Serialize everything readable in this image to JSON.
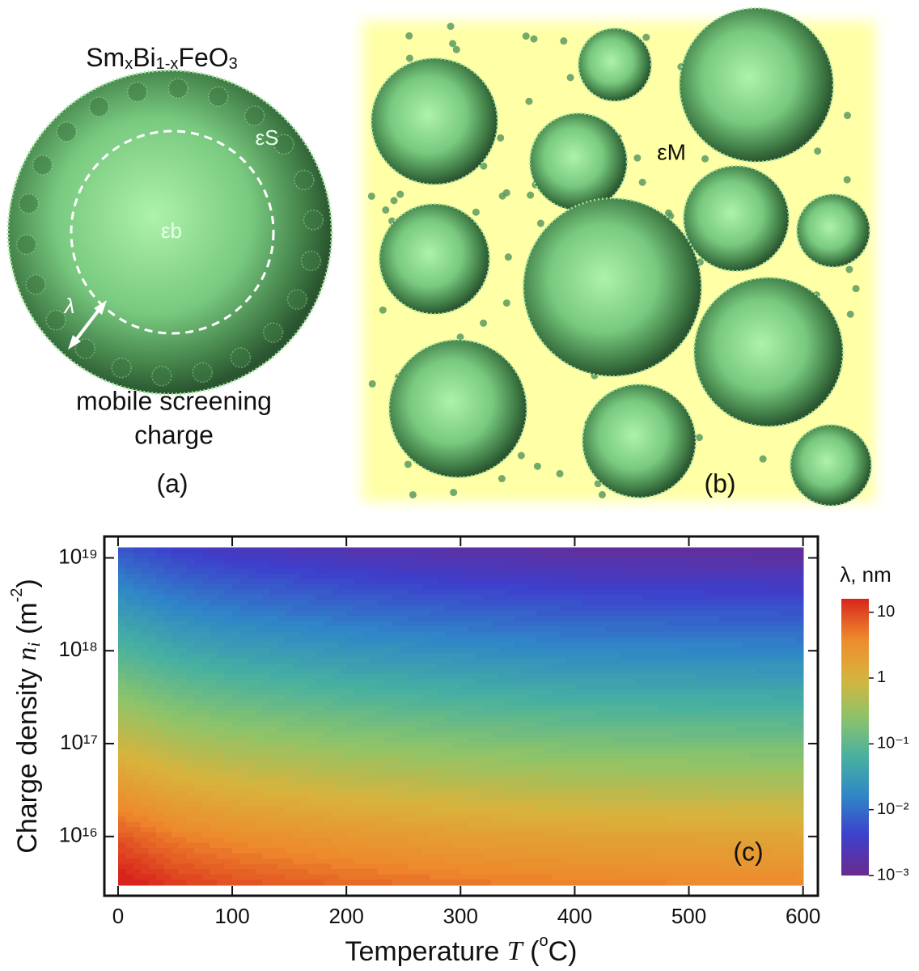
{
  "panel_a": {
    "formula_parts": [
      "Sm",
      "x",
      "Bi",
      "1-x",
      "FeO",
      "3"
    ],
    "shell_label": "εS",
    "core_label": "εb",
    "thickness_label": "λ",
    "caption_lines": [
      "mobile screening",
      "charge"
    ],
    "panel_label": "(a)"
  },
  "panel_b": {
    "matrix_label": "εM",
    "panel_label": "(b)"
  },
  "chart_data": {
    "type": "contour",
    "panel_label": "(c)",
    "xlabel_parts": [
      "Temperature ",
      "T",
      " (",
      "o",
      "C)"
    ],
    "ylabel_parts": [
      "Charge density ",
      "n",
      "i",
      " (m",
      "-2",
      ")"
    ],
    "colorbar_label": "λ, nm",
    "x": [
      0,
      50,
      100,
      200,
      300,
      400,
      500,
      600
    ],
    "y": [
      3000000000000000.0,
      1e+16,
      1e+17,
      1e+18,
      1e+19,
      1.3e+19
    ],
    "z": [
      [
        20,
        12,
        9,
        6.4,
        5.2,
        4.6,
        4.2,
        4
      ],
      [
        8,
        4.8,
        3.6,
        2.6,
        2.1,
        1.8,
        1.7,
        1.6
      ],
      [
        0.8,
        0.48,
        0.36,
        0.26,
        0.21,
        0.18,
        0.17,
        0.16
      ],
      [
        0.08,
        0.048,
        0.036,
        0.026,
        0.021,
        0.018,
        0.017,
        0.016
      ],
      [
        0.008,
        0.0048,
        0.0036,
        0.0026,
        0.0021,
        0.0018,
        0.0017,
        0.0016
      ],
      [
        0.006,
        0.0036,
        0.0027,
        0.0019,
        0.0016,
        0.0014,
        0.0013,
        0.0012
      ]
    ],
    "xlim": [
      -12,
      613
    ],
    "ylim": [
      2300000000000000.0,
      1.7e+19
    ],
    "ylog": true,
    "xticks": [
      0,
      100,
      200,
      300,
      400,
      500,
      600
    ],
    "yticks": [
      {
        "value": 1e+16,
        "label": "10¹⁶"
      },
      {
        "value": 1e+17,
        "label": "10¹⁷"
      },
      {
        "value": 1e+18,
        "label": "10¹⁸"
      },
      {
        "value": 1e+19,
        "label": "10¹⁹"
      }
    ],
    "clim": [
      0.001,
      16
    ],
    "clog": true,
    "cticks": [
      {
        "value": 10,
        "label": "10"
      },
      {
        "value": 1,
        "label": "1"
      },
      {
        "value": 0.1,
        "label": "10⁻¹"
      },
      {
        "value": 0.01,
        "label": "10⁻²"
      },
      {
        "value": 0.001,
        "label": "10⁻³"
      }
    ],
    "colormap": [
      "#6b2a8e",
      "#3d3fcc",
      "#2f86c8",
      "#47b0a0",
      "#8cc46a",
      "#d8b33c",
      "#ee8a2c",
      "#d8241c"
    ]
  }
}
